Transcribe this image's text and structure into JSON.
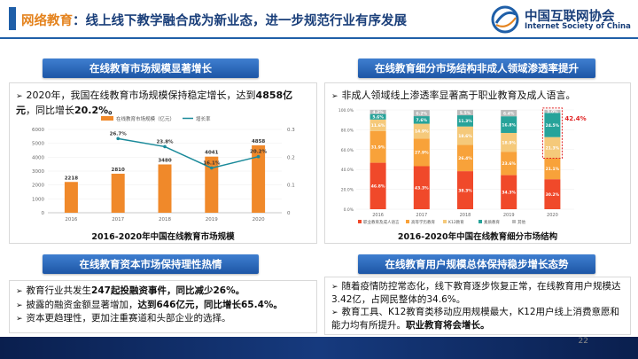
{
  "header": {
    "title_highlight": "网络教育",
    "title_rest": "：线上线下教学融合成为新业态，进一步规范行业有序发展",
    "logo_cn": "中国互联网协会",
    "logo_en": "Internet Society of China"
  },
  "market_size": {
    "heading": "在线教育市场规模显著增长",
    "bullet_part1": "2020年，我国在线教育市场规模保持稳定增长，达到",
    "bullet_bold": "4858亿元",
    "bullet_part2": "，同比增长",
    "bullet_bold2": "20.2%。",
    "caption": "2016-2020年中国在线教育市场规模",
    "legend_bar": "在线教育市场规模（亿元）",
    "legend_line": "增长率"
  },
  "segments": {
    "heading": "在线教育细分市场结构非成人领域渗透率提升",
    "bullet": "非成人领域线上渗透率显著高于职业教育及成人语言。",
    "caption": "2016-2020年中国在线教育细分市场结构",
    "highlight_label": "42.4%",
    "legend": [
      "职业教育及成人语言",
      "高等学历教育",
      "K12教育",
      "素质教育",
      "其他"
    ]
  },
  "capital": {
    "heading": "在线教育资本市场保持理性热情",
    "bullets": [
      {
        "pre": "教育行业共发生",
        "bold": "247起投融资事件，同比减少26%。",
        "post": ""
      },
      {
        "pre": "披露的融资金额显著增加，",
        "bold": "达到646亿元，同比增长65.4%。",
        "post": ""
      },
      {
        "pre": "资本更趋理性，更加注重赛道和头部企业的选择。",
        "bold": "",
        "post": ""
      }
    ]
  },
  "users": {
    "heading": "在线教育用户规模总体保持稳步增长态势",
    "bullets": [
      {
        "pre": "随着疫情防控常态化，线下教育逐步恢复正常，在线教育用户规模达3.42亿，占网民整体的34.6%。",
        "bold": ""
      },
      {
        "pre": "教育工具、K12教育类移动应用规模最大，K12用户线上消费意愿和能力均有所提升。",
        "bold": "职业教育将会增长。"
      }
    ]
  },
  "page_number": "22",
  "colors": {
    "bar": "#f0892a",
    "line": "#1a8a9a",
    "seg_colors": [
      "#f0492a",
      "#f8a23a",
      "#f5c97a",
      "#27a39a",
      "#bbbbbb"
    ]
  },
  "chart_data": [
    {
      "type": "bar",
      "categories": [
        "2016",
        "2017",
        "2018",
        "2019",
        "2020"
      ],
      "series": [
        {
          "name": "在线教育市场规模（亿元）",
          "values": [
            2218,
            2810,
            3480,
            4041,
            4858
          ]
        },
        {
          "name": "增长率",
          "values": [
            null,
            26.7,
            23.8,
            16.1,
            20.2
          ]
        }
      ],
      "ylim": [
        0,
        6000
      ],
      "y2lim": [
        0,
        0.3
      ],
      "y_ticks": [
        "0",
        "1000",
        "2000",
        "3000",
        "4000",
        "5000",
        "6000"
      ],
      "y2_ticks": [
        "0",
        "0.1",
        "0.2",
        "0.3"
      ],
      "bar_labels": [
        "2218",
        "2810",
        "3480",
        "4041",
        "4858"
      ],
      "line_labels": [
        "",
        "26.7%",
        "23.8%",
        "16.1%",
        "20.2%"
      ]
    },
    {
      "type": "bar",
      "categories": [
        "2016",
        "2017",
        "2018",
        "2019",
        "2020"
      ],
      "series": [
        {
          "name": "职业教育及成人语言",
          "values": [
            46.8,
            43.3,
            38.3,
            34.3,
            30.2
          ]
        },
        {
          "name": "高等学历教育",
          "values": [
            31.9,
            27.9,
            26.4,
            23.6,
            21.1
          ]
        },
        {
          "name": "K12教育",
          "values": [
            11.6,
            14.9,
            18.6,
            18.9,
            21.3
          ]
        },
        {
          "name": "素质教育",
          "values": [
            5.6,
            7.6,
            11.3,
            16.8,
            24.5
          ]
        },
        {
          "name": "其他",
          "values": [
            4.2,
            6.2,
            5.5,
            6.4,
            3.0
          ]
        }
      ],
      "labels": [
        [
          "46.8%",
          "31.9%",
          "11.6%",
          "5.6%",
          "4.2%"
        ],
        [
          "43.3%",
          "27.9%",
          "14.9%",
          "7.6%",
          "6.2%"
        ],
        [
          "38.3%",
          "26.4%",
          "18.6%",
          "11.3%",
          "5.5%"
        ],
        [
          "34.3%",
          "23.6%",
          "18.9%",
          "16.8%",
          "6.4%"
        ],
        [
          "30.2%",
          "21.1%",
          "21.3%",
          "24.5%",
          "3.0%"
        ]
      ],
      "ylim": [
        0,
        100
      ],
      "y_ticks": [
        "0.0%",
        "20.0%",
        "40.0%",
        "60.0%",
        "80.0%",
        "100.0%"
      ]
    }
  ]
}
